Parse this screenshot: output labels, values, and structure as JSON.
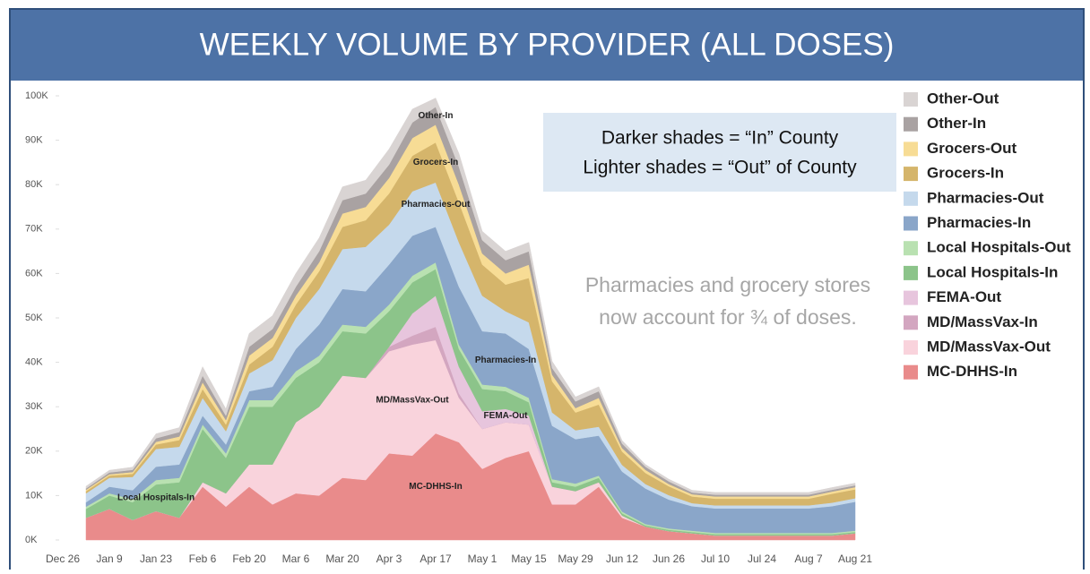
{
  "chart_data": {
    "type": "stacked_area",
    "title": "WEEKLY VOLUME BY PROVIDER (ALL DOSES)",
    "annotations": [
      "Darker shades = “In” County",
      "Lighter shades = “Out” of County",
      "Pharmacies and grocery stores",
      "now account for ¾ of doses."
    ],
    "categories": [
      "Dec 26",
      null,
      "Jan 9",
      null,
      "Jan 23",
      null,
      "Feb 6",
      null,
      "Feb 20",
      null,
      "Mar 6",
      null,
      "Mar 20",
      null,
      "Apr 3",
      null,
      "Apr 17",
      null,
      "May 1",
      null,
      "May 15",
      null,
      "May 29",
      null,
      "Jun 12",
      null,
      "Jun 26",
      null,
      "Jul 10",
      null,
      "Jul 24",
      null,
      "Aug 7",
      null,
      "Aug 21"
    ],
    "ylim": [
      0,
      100
    ],
    "yticks": [
      {
        "value": 0,
        "label": "0K"
      },
      {
        "value": 10,
        "label": "10K"
      },
      {
        "value": 20,
        "label": "20K"
      },
      {
        "value": 30,
        "label": "30K"
      },
      {
        "value": 40,
        "label": "40K"
      },
      {
        "value": 50,
        "label": "50K"
      },
      {
        "value": 60,
        "label": "60K"
      },
      {
        "value": 70,
        "label": "70K"
      },
      {
        "value": 80,
        "label": "80K"
      },
      {
        "value": 90,
        "label": "90K"
      },
      {
        "value": 100,
        "label": "100K"
      }
    ],
    "series": [
      {
        "name": "MC-DHHS-In",
        "color": "#e98b8b",
        "values": [
          null,
          5,
          7,
          4.5,
          6.5,
          5,
          12,
          7.5,
          12,
          8,
          10.5,
          10,
          14,
          13.5,
          19.5,
          19,
          24,
          22,
          16,
          18.5,
          20,
          8,
          8,
          12,
          5,
          3,
          2,
          1.5,
          1,
          1,
          1,
          1,
          1,
          1,
          1.5
        ]
      },
      {
        "name": "MD/MassVax-Out",
        "color": "#f9d3dc",
        "values": [
          null,
          0,
          0,
          0,
          0,
          0,
          1,
          3,
          5,
          9,
          16,
          20,
          23,
          23,
          23,
          25,
          21,
          10,
          9,
          8,
          6,
          4,
          3,
          1,
          0.5,
          0,
          0,
          0,
          0,
          0,
          0,
          0,
          0,
          0,
          0
        ]
      },
      {
        "name": "MD/MassVax-In",
        "color": "#d3a6c0",
        "values": [
          null,
          0,
          0,
          0,
          0,
          0,
          0,
          0,
          0,
          0,
          0,
          0,
          0,
          0,
          1,
          2,
          3,
          1,
          0,
          0,
          0,
          0,
          0,
          0,
          0,
          0,
          0,
          0,
          0,
          0,
          0,
          0,
          0,
          0,
          0
        ]
      },
      {
        "name": "FEMA-Out",
        "color": "#e7c5dd",
        "values": [
          null,
          0,
          0,
          0,
          0,
          0,
          0,
          0,
          0,
          0,
          0,
          0,
          0,
          0,
          0,
          5,
          7,
          6,
          4,
          3,
          2,
          0,
          0,
          0,
          0,
          0,
          0,
          0,
          0,
          0,
          0,
          0,
          0,
          0,
          0
        ]
      },
      {
        "name": "Local Hospitals-In",
        "color": "#8cc48a",
        "values": [
          null,
          2,
          3,
          4,
          6,
          8,
          12,
          8,
          13,
          13,
          10,
          10,
          10,
          10,
          8,
          7,
          6,
          4,
          5,
          4,
          3,
          1,
          1,
          1,
          0.5,
          0.3,
          0.3,
          0.3,
          0.3,
          0.3,
          0.3,
          0.3,
          0.3,
          0.3,
          0.3
        ]
      },
      {
        "name": "Local Hospitals-Out",
        "color": "#b9e1b1",
        "values": [
          null,
          0.5,
          0.5,
          0.7,
          1,
          1,
          1,
          1,
          1.5,
          1.5,
          1.5,
          1.5,
          1.5,
          1.5,
          1.5,
          1.5,
          1.5,
          1,
          1,
          1,
          1,
          0.7,
          0.7,
          0.5,
          0.4,
          0.3,
          0.3,
          0.3,
          0.3,
          0.3,
          0.3,
          0.3,
          0.3,
          0.3,
          0.3
        ]
      },
      {
        "name": "Pharmacies-In",
        "color": "#8aa6c9",
        "values": [
          null,
          1,
          1.5,
          2,
          3,
          3,
          2,
          2,
          2,
          3,
          5,
          7,
          8,
          8,
          9,
          9,
          8,
          13,
          12,
          12,
          11,
          12,
          10,
          9,
          9,
          8,
          6.5,
          5.5,
          5.5,
          5.5,
          5.5,
          5.5,
          5.5,
          6,
          6.5
        ]
      },
      {
        "name": "Pharmacies-Out",
        "color": "#c5d9ec",
        "values": [
          null,
          2,
          2,
          3,
          4,
          4,
          4,
          3,
          4,
          6,
          7,
          8,
          9,
          10,
          9,
          10,
          10,
          10,
          8,
          5,
          6,
          3,
          2,
          2,
          1.5,
          1,
          1,
          0.7,
          0.7,
          0.7,
          0.7,
          0.7,
          0.7,
          0.8,
          0.8
        ]
      },
      {
        "name": "Grocers-In",
        "color": "#d5b56b",
        "values": [
          null,
          0.5,
          0.5,
          0.7,
          1,
          1.5,
          2,
          1.5,
          2,
          3,
          3,
          4,
          5,
          6,
          7,
          8,
          9,
          9,
          7,
          6,
          10,
          7,
          4,
          5,
          3,
          2.5,
          2,
          1.5,
          1.5,
          1.5,
          1.5,
          1.5,
          1.5,
          2,
          2
        ]
      },
      {
        "name": "Grocers-Out",
        "color": "#f7dc95",
        "values": [
          null,
          0.3,
          0.3,
          0.4,
          0.6,
          0.8,
          1.5,
          1,
          2,
          2,
          2,
          2,
          3,
          3,
          3.5,
          4,
          4,
          4,
          2.5,
          2.5,
          3,
          1.5,
          1,
          1.5,
          0.8,
          0.7,
          0.5,
          0.5,
          0.5,
          0.5,
          0.5,
          0.5,
          0.5,
          0.5,
          0.5
        ]
      },
      {
        "name": "Other-In",
        "color": "#a9a2a2",
        "values": [
          null,
          0.3,
          0.4,
          0.5,
          0.8,
          1,
          1.5,
          1,
          2,
          2,
          2,
          2.5,
          3,
          3,
          3,
          3.5,
          4,
          4,
          3,
          3,
          3,
          1.5,
          1.5,
          1.5,
          1,
          0.7,
          0.6,
          0.4,
          0.4,
          0.4,
          0.4,
          0.4,
          0.4,
          0.4,
          0.4
        ]
      },
      {
        "name": "Other-Out",
        "color": "#d9d4d3",
        "values": [
          null,
          0.5,
          0.5,
          0.6,
          1,
          1,
          2,
          1.5,
          3,
          3,
          3,
          3,
          3,
          3,
          3.5,
          3,
          2,
          3,
          2,
          2,
          2,
          1.5,
          1,
          1,
          0.7,
          0.5,
          0.5,
          0.5,
          0.5,
          0.5,
          0.5,
          0.5,
          0.5,
          0.5,
          0.5
        ]
      }
    ]
  }
}
